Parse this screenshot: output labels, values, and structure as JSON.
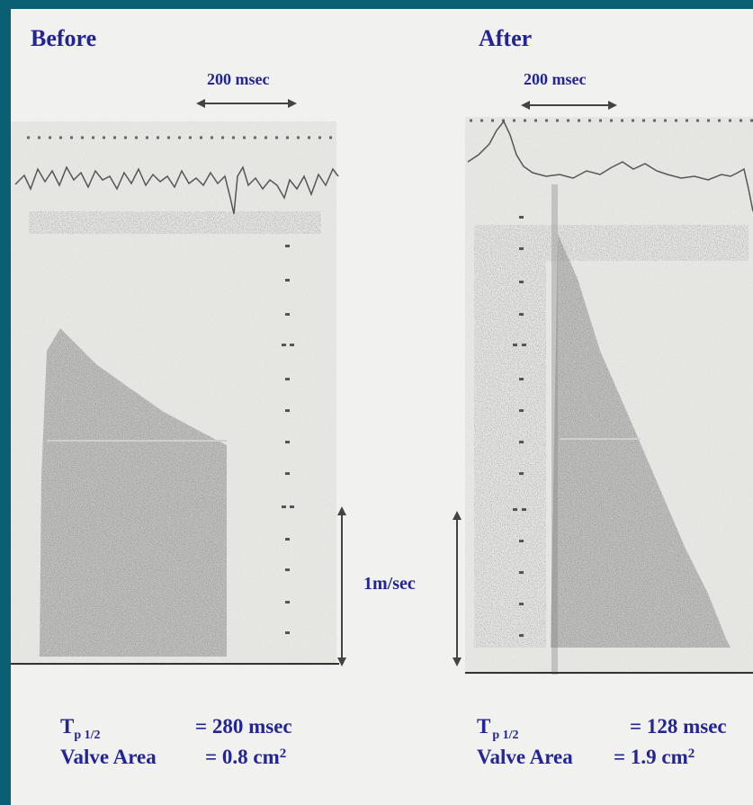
{
  "before": {
    "title": "Before",
    "time_scale": "200 msec",
    "tp_symbol": "T",
    "tp_subscript": "p 1/2",
    "tp_value": "= 280 msec",
    "area_label": "Valve Area",
    "area_value": "= 0.8 cm",
    "area_superscript": "2"
  },
  "after": {
    "title": "After",
    "time_scale": "200 msec",
    "tp_symbol": "T",
    "tp_subscript": "p 1/2",
    "tp_value": "= 128 msec",
    "area_label": "Valve Area",
    "area_value": "= 1.9 cm",
    "area_superscript": "2"
  },
  "velocity_scale": "1m/sec",
  "colors": {
    "border": "#0b5f73",
    "background": "#f1f1ef",
    "text": "#23239a"
  }
}
